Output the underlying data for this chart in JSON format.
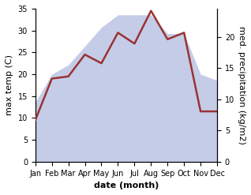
{
  "months": [
    "Jan",
    "Feb",
    "Mar",
    "Apr",
    "May",
    "Jun",
    "Jul",
    "Aug",
    "Sep",
    "Oct",
    "Nov",
    "Dec"
  ],
  "temperature": [
    9.5,
    19.0,
    19.5,
    24.5,
    22.5,
    29.5,
    27.0,
    34.5,
    28.0,
    29.5,
    11.5,
    11.5
  ],
  "precipitation": [
    9.5,
    14.0,
    15.5,
    18.5,
    21.5,
    23.5,
    23.5,
    23.5,
    20.5,
    20.5,
    14.0,
    13.0
  ],
  "temp_color": "#993333",
  "precip_fill_color": "#c5cce8",
  "temp_ylim": [
    0,
    35
  ],
  "precip_ylim": [
    0,
    24.5
  ],
  "temp_yticks": [
    0,
    5,
    10,
    15,
    20,
    25,
    30,
    35
  ],
  "precip_yticks": [
    0,
    5,
    10,
    15,
    20
  ],
  "ylabel_left": "max temp (C)",
  "ylabel_right": "med. precipitation (kg/m2)",
  "xlabel": "date (month)",
  "background_color": "#ffffff",
  "label_fontsize": 8,
  "tick_fontsize": 7
}
